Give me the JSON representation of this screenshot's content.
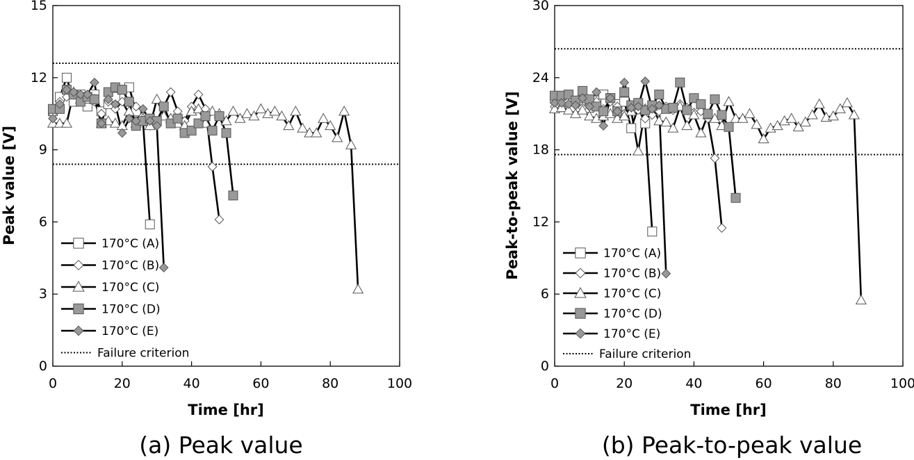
{
  "colors": {
    "white": "#ffffff",
    "gray": "#999999",
    "ink": "#000000"
  },
  "chart_data": [
    {
      "type": "line",
      "caption": "(a) Peak value",
      "xlabel": "Time [hr]",
      "ylabel": "Peak value [V]",
      "xlim": [
        0,
        100
      ],
      "ylim": [
        0,
        15
      ],
      "xticks": [
        0,
        20,
        40,
        60,
        80,
        100
      ],
      "yticks": [
        0,
        3,
        6,
        9,
        12,
        15
      ],
      "grid": false,
      "legend_position": "bottom-left",
      "failure_criterion": {
        "label": "Failure criterion",
        "values": [
          12.6,
          8.4
        ]
      },
      "series": [
        {
          "name": "170°C (A)",
          "marker": "square",
          "fill": "#ffffff",
          "points": [
            [
              0,
              10.6
            ],
            [
              2,
              11.2
            ],
            [
              4,
              12.0
            ],
            [
              6,
              11.0
            ],
            [
              8,
              11.3
            ],
            [
              10,
              10.8
            ],
            [
              12,
              11.3
            ],
            [
              14,
              10.6
            ],
            [
              16,
              10.9
            ],
            [
              18,
              11.2
            ],
            [
              20,
              11.5
            ],
            [
              22,
              11.6
            ],
            [
              24,
              10.6
            ],
            [
              26,
              10.2
            ],
            [
              28,
              5.9
            ]
          ]
        },
        {
          "name": "170°C (B)",
          "marker": "diamond",
          "fill": "#ffffff",
          "points": [
            [
              0,
              10.5
            ],
            [
              2,
              11.0
            ],
            [
              4,
              11.2
            ],
            [
              6,
              11.3
            ],
            [
              8,
              11.0
            ],
            [
              10,
              11.3
            ],
            [
              12,
              11.0
            ],
            [
              14,
              10.5
            ],
            [
              16,
              11.0
            ],
            [
              18,
              10.7
            ],
            [
              20,
              11.0
            ],
            [
              22,
              10.5
            ],
            [
              24,
              10.8
            ],
            [
              26,
              10.4
            ],
            [
              28,
              10.0
            ],
            [
              30,
              10.2
            ],
            [
              32,
              10.8
            ],
            [
              34,
              11.4
            ],
            [
              36,
              10.6
            ],
            [
              38,
              10.2
            ],
            [
              40,
              10.8
            ],
            [
              42,
              11.3
            ],
            [
              44,
              10.7
            ],
            [
              46,
              8.3
            ],
            [
              48,
              6.1
            ]
          ]
        },
        {
          "name": "170°C (C)",
          "marker": "triangle",
          "fill": "#ffffff",
          "points": [
            [
              0,
              10.1
            ],
            [
              2,
              10.1
            ],
            [
              4,
              10.1
            ],
            [
              6,
              11.4
            ],
            [
              8,
              11.1
            ],
            [
              10,
              11.1
            ],
            [
              12,
              11.1
            ],
            [
              14,
              10.1
            ],
            [
              16,
              10.2
            ],
            [
              18,
              10.1
            ],
            [
              20,
              10.0
            ],
            [
              22,
              10.6
            ],
            [
              24,
              10.1
            ],
            [
              26,
              10.3
            ],
            [
              28,
              10.0
            ],
            [
              30,
              11.1
            ],
            [
              32,
              10.4
            ],
            [
              34,
              10.3
            ],
            [
              36,
              10.1
            ],
            [
              38,
              10.0
            ],
            [
              40,
              10.6
            ],
            [
              42,
              10.7
            ],
            [
              44,
              10.1
            ],
            [
              46,
              10.6
            ],
            [
              48,
              10.5
            ],
            [
              50,
              10.2
            ],
            [
              52,
              10.6
            ],
            [
              54,
              10.3
            ],
            [
              56,
              10.5
            ],
            [
              58,
              10.4
            ],
            [
              60,
              10.7
            ],
            [
              62,
              10.5
            ],
            [
              64,
              10.6
            ],
            [
              66,
              10.4
            ],
            [
              68,
              10.0
            ],
            [
              70,
              10.6
            ],
            [
              72,
              9.9
            ],
            [
              74,
              9.7
            ],
            [
              76,
              9.7
            ],
            [
              78,
              10.3
            ],
            [
              80,
              10.0
            ],
            [
              82,
              9.5
            ],
            [
              84,
              10.6
            ],
            [
              86,
              9.2
            ],
            [
              88,
              3.2
            ]
          ]
        },
        {
          "name": "170°C (D)",
          "marker": "square",
          "fill": "#999999",
          "points": [
            [
              0,
              10.7
            ],
            [
              2,
              10.7
            ],
            [
              4,
              11.5
            ],
            [
              6,
              11.3
            ],
            [
              8,
              11.0
            ],
            [
              10,
              11.2
            ],
            [
              12,
              11.1
            ],
            [
              14,
              10.1
            ],
            [
              16,
              11.4
            ],
            [
              18,
              11.6
            ],
            [
              20,
              11.5
            ],
            [
              22,
              11.0
            ],
            [
              24,
              10.0
            ],
            [
              26,
              10.2
            ],
            [
              28,
              10.3
            ],
            [
              30,
              10.2
            ],
            [
              32,
              10.8
            ],
            [
              34,
              10.1
            ],
            [
              36,
              10.3
            ],
            [
              38,
              9.7
            ],
            [
              40,
              9.8
            ],
            [
              42,
              10.1
            ],
            [
              44,
              10.4
            ],
            [
              46,
              9.8
            ],
            [
              48,
              10.4
            ],
            [
              50,
              9.7
            ],
            [
              52,
              7.1
            ]
          ]
        },
        {
          "name": "170°C (E)",
          "marker": "diamond",
          "fill": "#999999",
          "points": [
            [
              0,
              10.3
            ],
            [
              2,
              10.9
            ],
            [
              4,
              11.5
            ],
            [
              6,
              11.4
            ],
            [
              8,
              11.3
            ],
            [
              10,
              11.3
            ],
            [
              12,
              11.8
            ],
            [
              14,
              10.1
            ],
            [
              16,
              11.1
            ],
            [
              18,
              10.9
            ],
            [
              20,
              9.7
            ],
            [
              22,
              10.3
            ],
            [
              24,
              10.2
            ],
            [
              26,
              10.7
            ],
            [
              28,
              10.2
            ],
            [
              30,
              10.0
            ],
            [
              32,
              4.1
            ]
          ]
        }
      ]
    },
    {
      "type": "line",
      "caption": "(b) Peak-to-peak value",
      "xlabel": "Time [hr]",
      "ylabel": "Peak-to-peak value [V]",
      "xlim": [
        0,
        100
      ],
      "ylim": [
        0,
        30
      ],
      "xticks": [
        0,
        20,
        40,
        60,
        80,
        100
      ],
      "yticks": [
        0,
        6,
        12,
        18,
        24,
        30
      ],
      "grid": false,
      "legend_position": "bottom-left",
      "failure_criterion": {
        "label": "Failure criterion",
        "values": [
          26.4,
          17.6
        ]
      },
      "series": [
        {
          "name": "170°C (A)",
          "marker": "square",
          "fill": "#ffffff",
          "points": [
            [
              0,
              22.3
            ],
            [
              2,
              22.0
            ],
            [
              4,
              22.3
            ],
            [
              6,
              22.0
            ],
            [
              8,
              22.3
            ],
            [
              10,
              21.5
            ],
            [
              12,
              22.1
            ],
            [
              14,
              22.6
            ],
            [
              16,
              22.3
            ],
            [
              18,
              21.8
            ],
            [
              20,
              22.0
            ],
            [
              22,
              19.8
            ],
            [
              24,
              21.5
            ],
            [
              26,
              20.2
            ],
            [
              28,
              11.2
            ]
          ]
        },
        {
          "name": "170°C (B)",
          "marker": "diamond",
          "fill": "#ffffff",
          "points": [
            [
              0,
              21.6
            ],
            [
              2,
              21.5
            ],
            [
              4,
              21.8
            ],
            [
              6,
              22.0
            ],
            [
              8,
              21.5
            ],
            [
              10,
              21.8
            ],
            [
              12,
              22.0
            ],
            [
              14,
              21.4
            ],
            [
              16,
              22.0
            ],
            [
              18,
              21.6
            ],
            [
              20,
              21.0
            ],
            [
              22,
              21.5
            ],
            [
              24,
              21.3
            ],
            [
              26,
              20.6
            ],
            [
              28,
              20.9
            ],
            [
              30,
              21.2
            ],
            [
              32,
              21.6
            ],
            [
              34,
              21.3
            ],
            [
              36,
              21.8
            ],
            [
              38,
              21.5
            ],
            [
              40,
              21.1
            ],
            [
              42,
              21.2
            ],
            [
              44,
              20.6
            ],
            [
              46,
              17.3
            ],
            [
              48,
              11.5
            ]
          ]
        },
        {
          "name": "170°C (C)",
          "marker": "triangle",
          "fill": "#ffffff",
          "points": [
            [
              0,
              21.4
            ],
            [
              2,
              21.5
            ],
            [
              4,
              21.3
            ],
            [
              6,
              21.0
            ],
            [
              8,
              21.3
            ],
            [
              10,
              20.8
            ],
            [
              12,
              20.6
            ],
            [
              14,
              20.8
            ],
            [
              16,
              21.0
            ],
            [
              18,
              20.6
            ],
            [
              20,
              20.8
            ],
            [
              22,
              21.2
            ],
            [
              24,
              17.9
            ],
            [
              26,
              21.4
            ],
            [
              28,
              21.6
            ],
            [
              30,
              20.4
            ],
            [
              32,
              20.3
            ],
            [
              34,
              19.8
            ],
            [
              36,
              21.6
            ],
            [
              38,
              20.0
            ],
            [
              40,
              20.9
            ],
            [
              42,
              19.4
            ],
            [
              44,
              20.9
            ],
            [
              46,
              20.6
            ],
            [
              48,
              20.0
            ],
            [
              50,
              22.0
            ],
            [
              52,
              20.6
            ],
            [
              54,
              20.6
            ],
            [
              56,
              21.0
            ],
            [
              58,
              20.1
            ],
            [
              60,
              18.9
            ],
            [
              62,
              19.8
            ],
            [
              64,
              20.0
            ],
            [
              66,
              20.4
            ],
            [
              68,
              20.6
            ],
            [
              70,
              19.9
            ],
            [
              72,
              20.3
            ],
            [
              74,
              20.9
            ],
            [
              76,
              21.8
            ],
            [
              78,
              20.7
            ],
            [
              80,
              20.8
            ],
            [
              82,
              21.4
            ],
            [
              84,
              21.9
            ],
            [
              86,
              20.9
            ],
            [
              88,
              5.5
            ]
          ]
        },
        {
          "name": "170°C (D)",
          "marker": "square",
          "fill": "#999999",
          "points": [
            [
              0,
              22.5
            ],
            [
              2,
              22.5
            ],
            [
              4,
              22.6
            ],
            [
              6,
              22.1
            ],
            [
              8,
              22.9
            ],
            [
              10,
              22.2
            ],
            [
              12,
              21.6
            ],
            [
              14,
              21.2
            ],
            [
              16,
              22.3
            ],
            [
              18,
              21.2
            ],
            [
              20,
              22.8
            ],
            [
              22,
              21.7
            ],
            [
              24,
              21.9
            ],
            [
              26,
              21.3
            ],
            [
              28,
              21.7
            ],
            [
              30,
              22.6
            ],
            [
              32,
              21.4
            ],
            [
              34,
              21.5
            ],
            [
              36,
              23.6
            ],
            [
              38,
              21.3
            ],
            [
              40,
              22.3
            ],
            [
              42,
              21.8
            ],
            [
              44,
              21.0
            ],
            [
              46,
              22.2
            ],
            [
              48,
              20.9
            ],
            [
              50,
              19.9
            ],
            [
              52,
              14.0
            ]
          ]
        },
        {
          "name": "170°C (E)",
          "marker": "diamond",
          "fill": "#999999",
          "points": [
            [
              0,
              21.9
            ],
            [
              2,
              21.9
            ],
            [
              4,
              21.8
            ],
            [
              6,
              21.7
            ],
            [
              8,
              22.3
            ],
            [
              10,
              21.6
            ],
            [
              12,
              22.8
            ],
            [
              14,
              20.0
            ],
            [
              16,
              22.3
            ],
            [
              18,
              21.2
            ],
            [
              20,
              23.6
            ],
            [
              22,
              21.5
            ],
            [
              24,
              21.6
            ],
            [
              26,
              23.7
            ],
            [
              28,
              21.4
            ],
            [
              30,
              21.7
            ],
            [
              32,
              7.7
            ]
          ]
        }
      ]
    }
  ]
}
